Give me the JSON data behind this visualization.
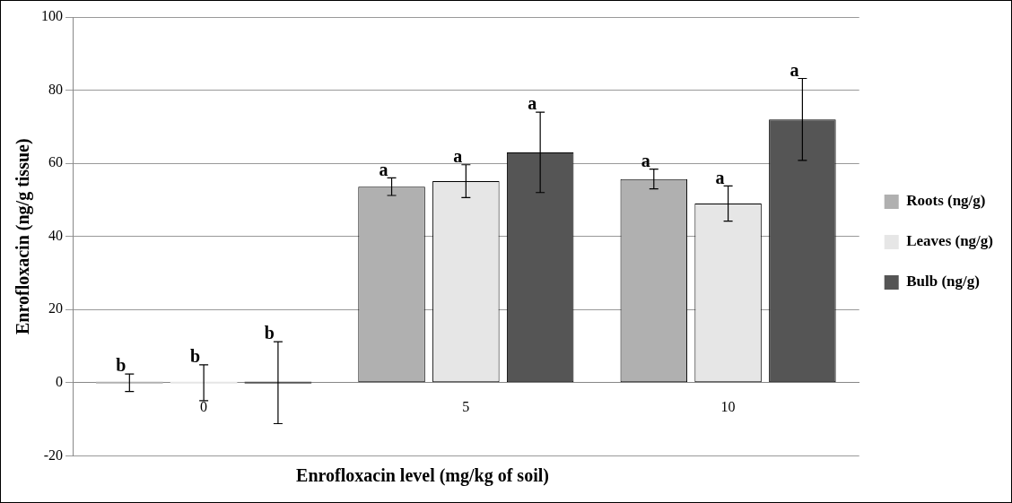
{
  "chart_data": {
    "type": "bar",
    "xlabel": "Enrofloxacin level (mg/kg of soil)",
    "ylabel": "Enrofloxacin (ng/g tissue)",
    "categories": [
      "0",
      "5",
      "10"
    ],
    "series": [
      {
        "name": "Roots (ng/g)",
        "color": "#b0b0b0",
        "values": [
          0,
          53.6,
          55.7
        ],
        "errors": [
          2.4,
          2.4,
          2.7
        ],
        "value_labels": [
          "b",
          "a",
          "a"
        ]
      },
      {
        "name": "Leaves (ng/g)",
        "color": "#e6e6e6",
        "values": [
          0,
          55.1,
          49.0
        ],
        "errors": [
          4.9,
          4.5,
          4.8
        ],
        "value_labels": [
          "b",
          "a",
          "a"
        ]
      },
      {
        "name": "Bulb (ng/g)",
        "color": "#555555",
        "values": [
          0,
          63.0,
          72.0
        ],
        "errors": [
          11.2,
          11.0,
          11.2
        ],
        "value_labels": [
          "b",
          "a",
          "a"
        ]
      }
    ],
    "ylim": [
      -20,
      100
    ],
    "yticks": [
      -20,
      0,
      20,
      40,
      60,
      80,
      100
    ],
    "grid": "y",
    "legend": "right"
  }
}
